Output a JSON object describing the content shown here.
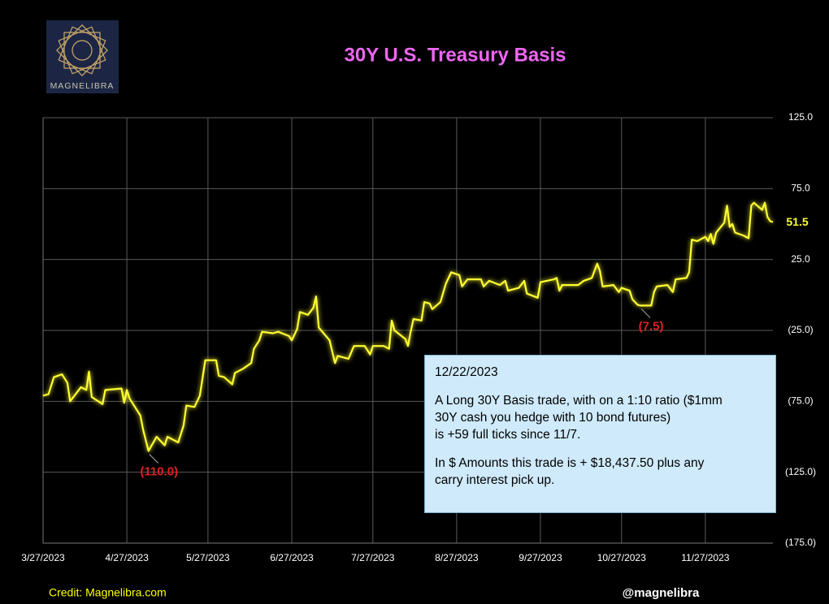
{
  "chart_data": {
    "type": "line",
    "title": "30Y U.S. Treasury Basis",
    "brand": "MAGNELIBRA",
    "credit": "Credit: Magnelibra.com",
    "handle": "@magnelibra",
    "xlim": [
      "2023-03-27",
      "2023-12-22"
    ],
    "xticks": [
      {
        "value": "2023-03-27",
        "label": "3/27/2023"
      },
      {
        "value": "2023-04-27",
        "label": "4/27/2023"
      },
      {
        "value": "2023-05-27",
        "label": "5/27/2023"
      },
      {
        "value": "2023-06-27",
        "label": "6/27/2023"
      },
      {
        "value": "2023-07-27",
        "label": "7/27/2023"
      },
      {
        "value": "2023-08-27",
        "label": "8/27/2023"
      },
      {
        "value": "2023-09-27",
        "label": "9/27/2023"
      },
      {
        "value": "2023-10-27",
        "label": "10/27/2023"
      },
      {
        "value": "2023-11-27",
        "label": "11/27/2023"
      }
    ],
    "ylim": [
      -175,
      125
    ],
    "yticks": [
      {
        "value": 125,
        "label": "125.0"
      },
      {
        "value": 75,
        "label": "75.0"
      },
      {
        "value": 25,
        "label": "25.0"
      },
      {
        "value": -25,
        "label": "(25.0)"
      },
      {
        "value": -75,
        "label": "(75.0)"
      },
      {
        "value": -125,
        "label": "(125.0)"
      },
      {
        "value": -175,
        "label": "(175.0)"
      }
    ],
    "grid": true,
    "series": [
      {
        "name": "30Y Basis",
        "color": "#ffff33",
        "x": [
          "2023-03-27",
          "2023-03-29",
          "2023-03-31",
          "2023-04-03",
          "2023-04-05",
          "2023-04-06",
          "2023-04-10",
          "2023-04-12",
          "2023-04-13",
          "2023-04-14",
          "2023-04-18",
          "2023-04-19",
          "2023-04-25",
          "2023-04-26",
          "2023-04-27",
          "2023-04-28",
          "2023-05-02",
          "2023-05-03",
          "2023-05-05",
          "2023-05-08",
          "2023-05-10",
          "2023-05-11",
          "2023-05-12",
          "2023-05-16",
          "2023-05-18",
          "2023-05-19",
          "2023-05-22",
          "2023-05-24",
          "2023-05-26",
          "2023-05-30",
          "2023-05-31",
          "2023-06-02",
          "2023-06-05",
          "2023-06-06",
          "2023-06-09",
          "2023-06-12",
          "2023-06-13",
          "2023-06-15",
          "2023-06-16",
          "2023-06-20",
          "2023-06-22",
          "2023-06-26",
          "2023-06-27",
          "2023-06-29",
          "2023-06-30",
          "2023-07-03",
          "2023-07-05",
          "2023-07-06",
          "2023-07-07",
          "2023-07-11",
          "2023-07-13",
          "2023-07-14",
          "2023-07-18",
          "2023-07-20",
          "2023-07-24",
          "2023-07-26",
          "2023-07-27",
          "2023-07-31",
          "2023-08-02",
          "2023-08-03",
          "2023-08-04",
          "2023-08-08",
          "2023-08-09",
          "2023-08-10",
          "2023-08-11",
          "2023-08-14",
          "2023-08-15",
          "2023-08-17",
          "2023-08-18",
          "2023-08-21",
          "2023-08-23",
          "2023-08-25",
          "2023-08-28",
          "2023-08-29",
          "2023-08-31",
          "2023-09-05",
          "2023-09-06",
          "2023-09-08",
          "2023-09-12",
          "2023-09-14",
          "2023-09-15",
          "2023-09-19",
          "2023-09-21",
          "2023-09-22",
          "2023-09-26",
          "2023-09-27",
          "2023-10-02",
          "2023-10-03",
          "2023-10-04",
          "2023-10-05",
          "2023-10-11",
          "2023-10-13",
          "2023-10-16",
          "2023-10-18",
          "2023-10-19",
          "2023-10-20",
          "2023-10-24",
          "2023-10-26",
          "2023-10-27",
          "2023-10-30",
          "2023-10-31",
          "2023-11-02",
          "2023-11-03",
          "2023-11-07",
          "2023-11-08",
          "2023-11-09",
          "2023-11-13",
          "2023-11-15",
          "2023-11-16",
          "2023-11-20",
          "2023-11-21",
          "2023-11-22",
          "2023-11-24",
          "2023-11-27",
          "2023-11-28",
          "2023-11-29",
          "2023-11-30",
          "2023-12-01",
          "2023-12-04",
          "2023-12-05",
          "2023-12-06",
          "2023-12-07",
          "2023-12-08",
          "2023-12-11",
          "2023-12-13",
          "2023-12-14",
          "2023-12-15",
          "2023-12-18",
          "2023-12-19",
          "2023-12-20",
          "2023-12-21",
          "2023-12-22"
        ],
        "values": [
          -71,
          -70,
          -58,
          -56,
          -62,
          -75,
          -65,
          -67,
          -54,
          -72,
          -77,
          -67,
          -66,
          -76,
          -67,
          -73,
          -85,
          -95,
          -110,
          -100,
          -104,
          -106,
          -100,
          -104,
          -92,
          -78,
          -79,
          -71,
          -46,
          -46,
          -57,
          -58,
          -63,
          -55,
          -52,
          -48,
          -38,
          -32,
          -26,
          -27,
          -26,
          -29,
          -32,
          -24,
          -12,
          -14,
          -9,
          -1,
          -23,
          -32,
          -48,
          -43,
          -45,
          -36,
          -36,
          -42,
          -36,
          -36,
          -38,
          -18,
          -25,
          -31,
          -36,
          -26,
          -17,
          -18,
          -5,
          -6,
          -10,
          -5,
          8,
          16,
          14,
          6,
          11,
          11,
          6,
          10,
          7,
          10,
          3,
          5,
          10,
          1,
          -2,
          9,
          11,
          12,
          3,
          7,
          7,
          10,
          12,
          22,
          17,
          6,
          7,
          2,
          5,
          3,
          -3,
          -7,
          -7.5,
          -7.5,
          2,
          6,
          7,
          2,
          11,
          12,
          16,
          39,
          38,
          41,
          38,
          43,
          36,
          44,
          51,
          63,
          48,
          50,
          44,
          42,
          40,
          63,
          65,
          60,
          65,
          55,
          52,
          51.5
        ]
      }
    ],
    "annotations": [
      {
        "x": "2023-05-05",
        "value": -110,
        "text": "(110.0)",
        "color": "#e02020"
      },
      {
        "x": "2023-11-03",
        "value": -7.5,
        "text": "(7.5)",
        "color": "#e02020"
      },
      {
        "x": "2023-12-22",
        "value": 51.5,
        "text": "51.5",
        "color": "#ffff33",
        "position": "axis"
      }
    ],
    "note": {
      "date": "12/22/2023",
      "paragraphs": [
        [
          "A Long 30Y Basis trade, with on a 1:10 ratio ($1mm",
          "30Y cash you hedge with 10 bond futures)",
          "is +59 full ticks since 11/7."
        ],
        [
          "In $ Amounts this trade is + $18,437.50 plus any",
          "carry interest pick up."
        ]
      ]
    }
  }
}
